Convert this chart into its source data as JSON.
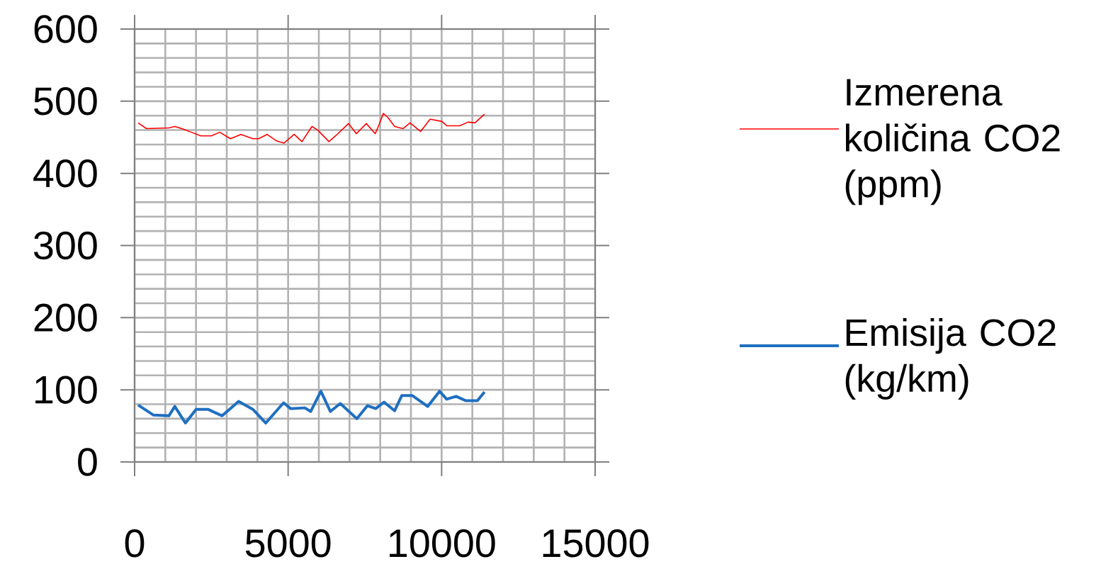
{
  "chart_data": {
    "type": "line",
    "xlim": [
      0,
      15000
    ],
    "ylim": [
      0,
      600
    ],
    "xticks": [
      0,
      5000,
      10000,
      15000
    ],
    "yticks": [
      0,
      100,
      200,
      300,
      400,
      500,
      600
    ],
    "grid": true,
    "legend": "right",
    "marker": "none",
    "line_style": "solid",
    "series": [
      {
        "name": "Izmerena količina CO2 (ppm)",
        "color": "#ff0000",
        "x": [
          115,
          385,
          1116,
          1309,
          1540,
          1848,
          2157,
          2503,
          2773,
          3119,
          3465,
          3850,
          4043,
          4312,
          4620,
          4866,
          5197,
          5451,
          5775,
          5967,
          6329,
          6545,
          6969,
          7223,
          7546,
          7839,
          7947,
          8101,
          8239,
          8470,
          8740,
          8971,
          9317,
          9625,
          10010,
          10164,
          10588,
          10857,
          11088,
          11396
        ],
        "values": [
          470,
          462,
          463,
          465,
          462,
          457,
          452,
          452,
          457,
          448,
          454,
          448,
          448,
          454,
          445,
          442,
          454,
          444,
          465,
          460,
          444,
          452,
          469,
          455,
          469,
          455,
          466,
          483,
          478,
          465,
          462,
          470,
          458,
          475,
          472,
          466,
          466,
          471,
          470,
          482
        ]
      },
      {
        "name": "Emisija CO2 (kg/km)",
        "color": "#1f6fc0",
        "x": [
          115,
          616,
          1116,
          1309,
          1655,
          2003,
          2388,
          2850,
          3388,
          3850,
          4273,
          4851,
          5082,
          5544,
          5736,
          6067,
          6375,
          6699,
          7238,
          7585,
          7854,
          8124,
          8470,
          8701,
          9048,
          9548,
          9933,
          10164,
          10472,
          10780,
          11165,
          11396
        ],
        "values": [
          79,
          65,
          64,
          77,
          54,
          73,
          73,
          64,
          84,
          73,
          54,
          82,
          74,
          75,
          70,
          98,
          70,
          81,
          60,
          78,
          74,
          83,
          71,
          92,
          92,
          77,
          98,
          87,
          91,
          85,
          85,
          97
        ]
      }
    ]
  }
}
